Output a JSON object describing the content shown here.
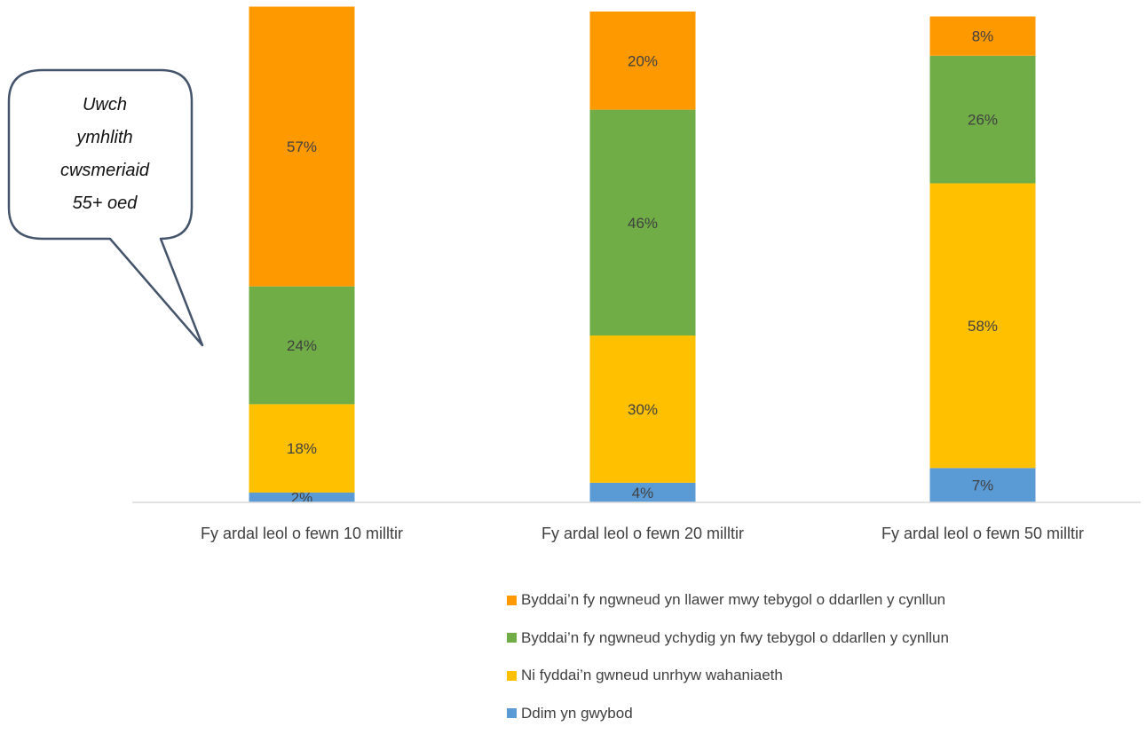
{
  "chart_data": {
    "type": "bar",
    "stacked": true,
    "categories": [
      "Fy ardal leol o fewn 10 milltir",
      "Fy ardal leol o fewn 20 milltir",
      "Fy ardal leol o fewn 50 milltir"
    ],
    "series": [
      {
        "name": "Ddim yn gwybod",
        "color": "#5b9bd5",
        "values": [
          2,
          4,
          7
        ],
        "labels": [
          "2%",
          "4%",
          "7%"
        ]
      },
      {
        "name": "Ni fyddai’n gwneud unrhyw wahaniaeth",
        "color": "#ffc000",
        "values": [
          18,
          30,
          58
        ],
        "labels": [
          "18%",
          "30%",
          "58%"
        ]
      },
      {
        "name": "Byddai’n fy ngwneud ychydig yn fwy tebygol o ddarllen y cynllun",
        "color": "#70ad47",
        "values": [
          24,
          46,
          26
        ],
        "labels": [
          "24%",
          "46%",
          "26%"
        ]
      },
      {
        "name": "Byddai’n fy ngwneud yn llawer mwy tebygol o ddarllen y cynllun",
        "color": "#ff9900",
        "values": [
          57,
          20,
          8
        ],
        "labels": [
          "57%",
          "20%",
          "8%"
        ]
      }
    ],
    "legend_order": [
      3,
      2,
      1,
      0
    ],
    "legend_position": "bottom",
    "grid": false,
    "annotations": [
      {
        "type": "callout",
        "lines": [
          "Uwch",
          "ymhlith",
          "cwsmeriaid",
          "55+ oed"
        ],
        "points_to": "Fy ardal leol o fewn 10 milltir"
      }
    ]
  }
}
